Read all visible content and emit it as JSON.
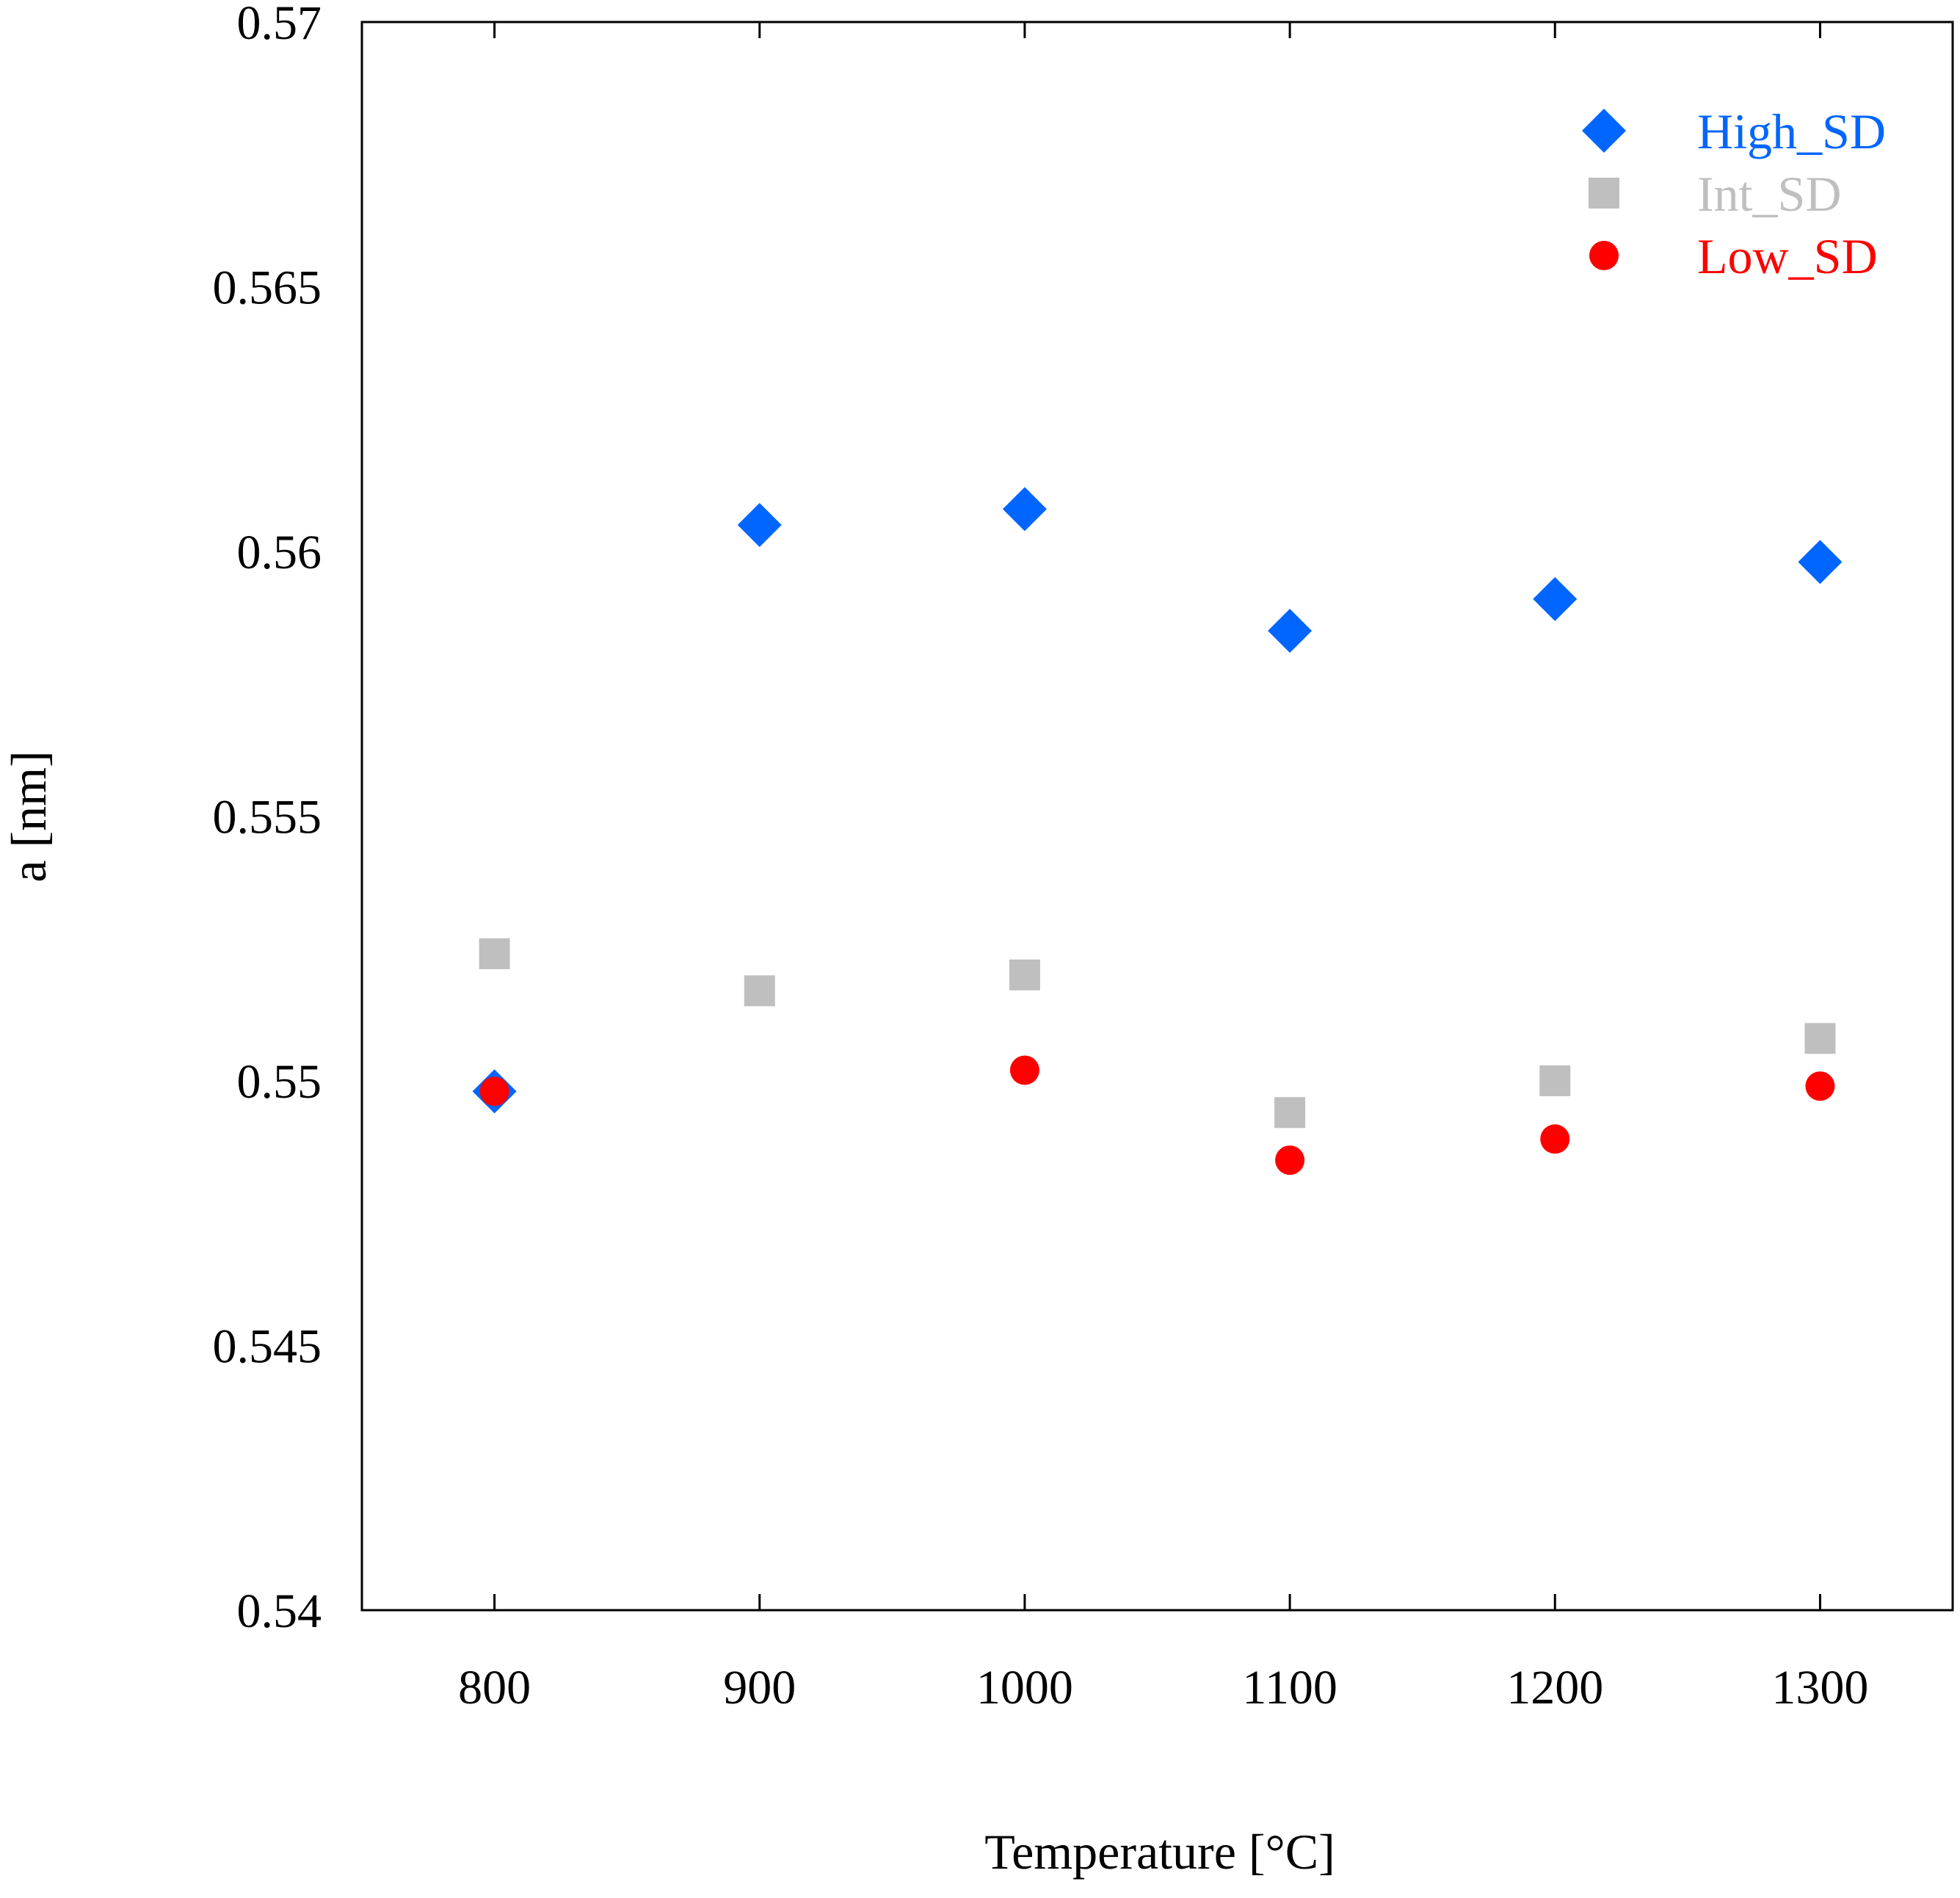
{
  "chart_data": {
    "type": "scatter",
    "title": "",
    "xlabel": "Temperature [°C]",
    "ylabel": "a [nm]",
    "xlim": [
      750,
      1350
    ],
    "ylim": [
      0.54,
      0.57
    ],
    "grid": false,
    "legend_position": "top-right",
    "x_ticks": [
      800,
      900,
      1000,
      1100,
      1200,
      1300
    ],
    "x_tick_labels": [
      "800",
      "900",
      "1000",
      "1100",
      "1200",
      "1300"
    ],
    "y_ticks": [
      0.54,
      0.545,
      0.55,
      0.555,
      0.56,
      0.565,
      0.57
    ],
    "y_tick_labels": [
      "0.54",
      "0.545",
      "0.55",
      "0.555",
      "0.56",
      "0.565",
      "0.57"
    ],
    "series": [
      {
        "name": "High_SD",
        "marker": "diamond",
        "color": "#0066ff",
        "x": [
          800,
          900,
          1000,
          1100,
          1200,
          1300
        ],
        "y": [
          0.5498,
          0.5605,
          0.5608,
          0.5585,
          0.5591,
          0.5598
        ]
      },
      {
        "name": "Int_SD",
        "marker": "square",
        "color": "#bfbfbf",
        "x": [
          800,
          900,
          1000,
          1100,
          1200,
          1300
        ],
        "y": [
          0.5524,
          0.5517,
          0.552,
          0.5494,
          0.55,
          0.5508
        ]
      },
      {
        "name": "Low_SD",
        "marker": "circle",
        "color": "#ff0000",
        "x": [
          800,
          1000,
          1100,
          1200,
          1300
        ],
        "y": [
          0.5498,
          0.5502,
          0.5485,
          0.5489,
          0.5499
        ]
      }
    ]
  }
}
